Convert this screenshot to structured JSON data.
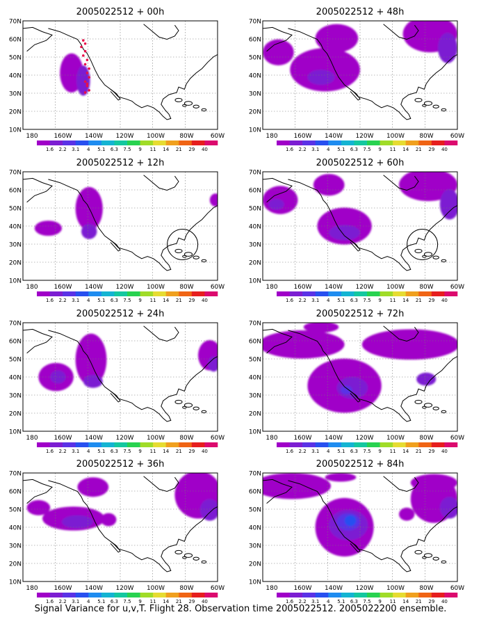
{
  "panels": [
    {
      "title": "2005022512 + 00h"
    },
    {
      "title": "2005022512 + 48h"
    },
    {
      "title": "2005022512 + 12h"
    },
    {
      "title": "2005022512 + 60h"
    },
    {
      "title": "2005022512 + 24h"
    },
    {
      "title": "2005022512 + 72h"
    },
    {
      "title": "2005022512 + 36h"
    },
    {
      "title": "2005022512 + 84h"
    }
  ],
  "lat_labels": [
    "70N",
    "60N",
    "50N",
    "40N",
    "30N",
    "20N",
    "10N"
  ],
  "lon_labels": [
    "180",
    "160W",
    "140W",
    "120W",
    "100W",
    "80W",
    "60W"
  ],
  "colorbar": {
    "labels": [
      "1.6",
      "2.2",
      "3.1",
      "4",
      "5.1",
      "6.3",
      "7.5",
      "9",
      "11",
      "14",
      "21",
      "29",
      "40"
    ],
    "colors": [
      "#a000c8",
      "#7c1ed2",
      "#5a32e6",
      "#2850f0",
      "#1e8cf0",
      "#14b4d2",
      "#14c8a0",
      "#28d250",
      "#a0dc28",
      "#e6dc32",
      "#f0a01e",
      "#f06414",
      "#e61e1e",
      "#dc0a6e"
    ]
  },
  "caption": "Signal Variance for u,v,T. Flight 28. Observation time 2005022512. 2005022200 ensemble."
}
